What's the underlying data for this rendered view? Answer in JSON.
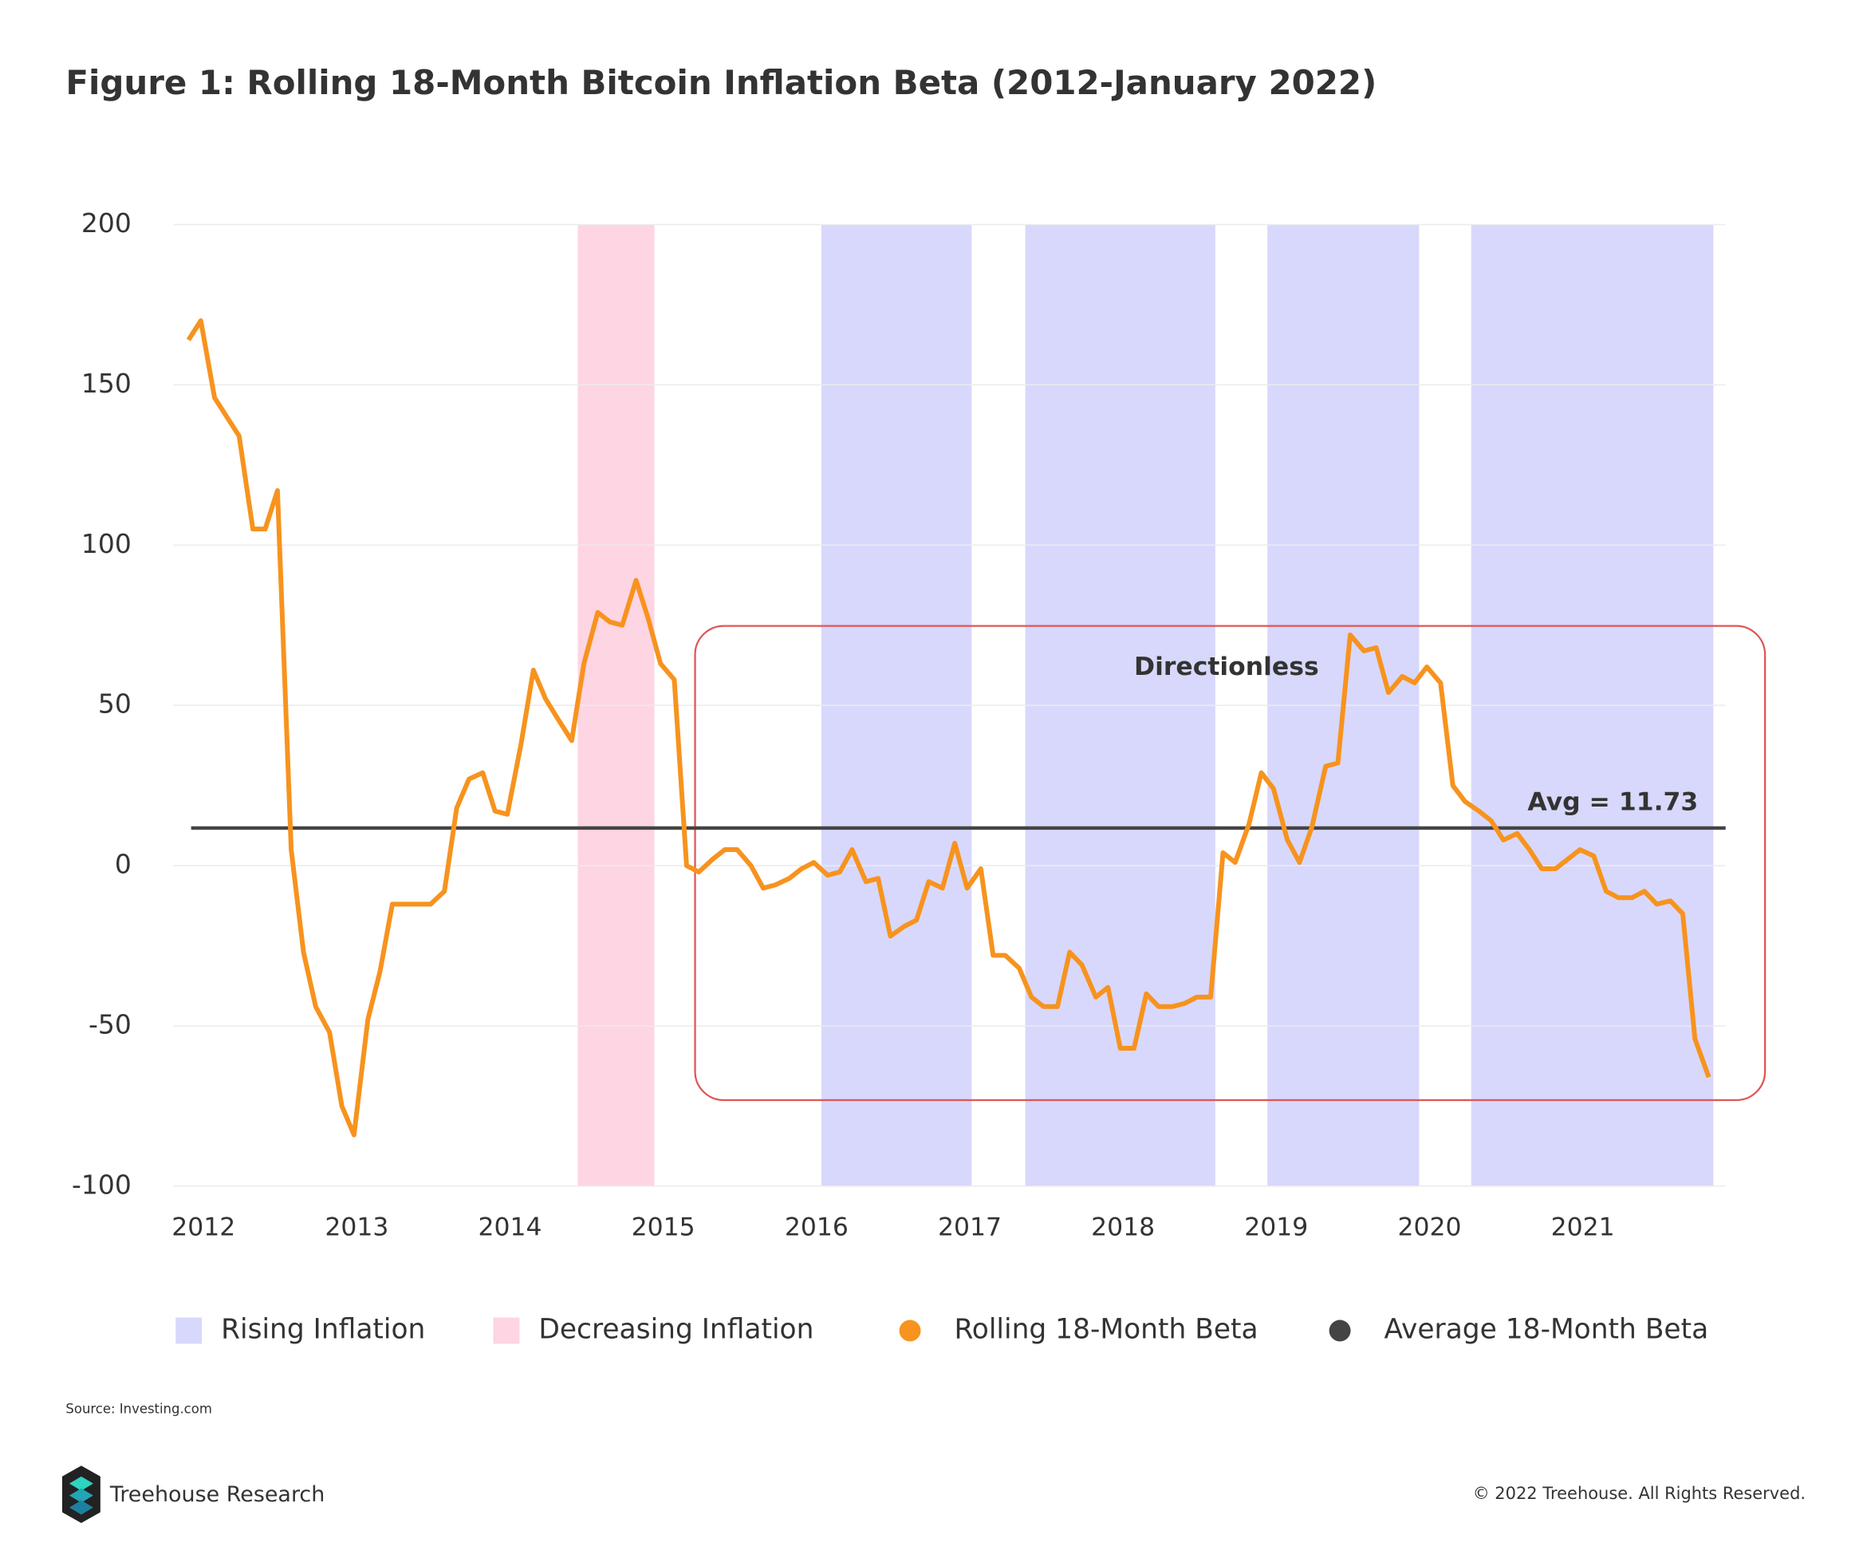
{
  "chart_data": {
    "type": "line",
    "title": "Figure 1: Rolling 18-Month Bitcoin Inflation Beta (2012-January 2022)",
    "x": [
      2011.98,
      2012.06,
      2012.15,
      2012.23,
      2012.31,
      2012.4,
      2012.48,
      2012.56,
      2012.65,
      2012.73,
      2012.81,
      2012.9,
      2012.98,
      2013.06,
      2013.15,
      2013.23,
      2013.31,
      2013.4,
      2013.48,
      2013.56,
      2013.65,
      2013.73,
      2013.81,
      2013.9,
      2013.98,
      2014.06,
      2014.15,
      2014.23,
      2014.31,
      2014.4,
      2014.48,
      2014.56,
      2014.65,
      2014.73,
      2014.81,
      2014.9,
      2014.98,
      2015.06,
      2015.15,
      2015.23,
      2015.31,
      2015.4,
      2015.48,
      2015.56,
      2015.65,
      2015.73,
      2015.81,
      2015.9,
      2015.98,
      2016.06,
      2016.15,
      2016.23,
      2016.31,
      2016.4,
      2016.48,
      2016.56,
      2016.65,
      2016.73,
      2016.81,
      2016.9,
      2016.98,
      2017.06,
      2017.15,
      2017.23,
      2017.31,
      2017.4,
      2017.48,
      2017.56,
      2017.65,
      2017.73,
      2017.81,
      2017.9,
      2017.98,
      2018.06,
      2018.15,
      2018.23,
      2018.31,
      2018.4,
      2018.48,
      2018.56,
      2018.65,
      2018.73,
      2018.81,
      2018.9,
      2018.98,
      2019.06,
      2019.15,
      2019.23,
      2019.31,
      2019.4,
      2019.48,
      2019.56,
      2019.65,
      2019.73,
      2019.81,
      2019.9,
      2019.98,
      2020.06,
      2020.15,
      2020.23,
      2020.31,
      2020.4,
      2020.48,
      2020.56,
      2020.65,
      2020.73,
      2020.81,
      2020.9,
      2020.98,
      2021.06,
      2021.15,
      2021.23,
      2021.31,
      2021.4,
      2021.48,
      2021.56,
      2021.65,
      2021.73,
      2021.81,
      2021.9
    ],
    "series": [
      {
        "name": "Rolling 18-Month Beta",
        "color": "#f7931e",
        "values": [
          164,
          170,
          146,
          140,
          134,
          105,
          105,
          117,
          5,
          -27,
          -44,
          -52,
          -75,
          -84,
          -48,
          -33,
          -12,
          -12,
          -12,
          -12,
          -8,
          18,
          27,
          29,
          17,
          16,
          38,
          61,
          52,
          45,
          39,
          63,
          79,
          76,
          75,
          89,
          77,
          63,
          58,
          0,
          -2,
          2,
          5,
          5,
          0,
          -7,
          -6,
          -4,
          -1,
          1,
          -3,
          -2,
          5,
          -5,
          -4,
          -22,
          -19,
          -17,
          -5,
          -7,
          7,
          -7,
          -1,
          -28,
          -28,
          -32,
          -41,
          -44,
          -44,
          -27,
          -31,
          -41,
          -38,
          -57,
          -57,
          -40,
          -44,
          -44,
          -43,
          -41,
          -41,
          4,
          1,
          13,
          29,
          24,
          8,
          1,
          12,
          31,
          32,
          72,
          67,
          68,
          54,
          59,
          57,
          62,
          57,
          25,
          20,
          17,
          14,
          8,
          10,
          5,
          -1,
          -1,
          2,
          5,
          3,
          -8,
          -10,
          -10,
          -8,
          -12,
          -11,
          -15,
          -54,
          -66
        ]
      }
    ],
    "average": {
      "name": "Average 18-Month Beta",
      "color": "#444444",
      "value": 11.73,
      "label": "Avg = 11.73"
    },
    "bands": [
      {
        "name": "Rising Inflation",
        "color": "#d8d8fc",
        "ranges": [
          [
            2016.11,
            2017.09
          ],
          [
            2017.44,
            2018.68
          ],
          [
            2019.02,
            2020.01
          ],
          [
            2020.35,
            2021.93
          ]
        ]
      },
      {
        "name": "Decreasing Inflation",
        "color": "#fdd5e3",
        "ranges": [
          [
            2014.52,
            2015.02
          ]
        ]
      }
    ],
    "annotation": "Directionless",
    "xlim": [
      2011.88,
      2022.01
    ],
    "ylim": [
      -100,
      200
    ],
    "xticks": [
      2012,
      2013,
      2014,
      2015,
      2016,
      2017,
      2018,
      2019,
      2020,
      2021
    ],
    "yticks": [
      200,
      150,
      100,
      50,
      0,
      -50,
      -100
    ],
    "grid": true,
    "legend": "bottom"
  },
  "source": "Source: Investing.com",
  "brand": "Treehouse Research",
  "copyright": "© 2022 Treehouse. All Rights Reserved."
}
